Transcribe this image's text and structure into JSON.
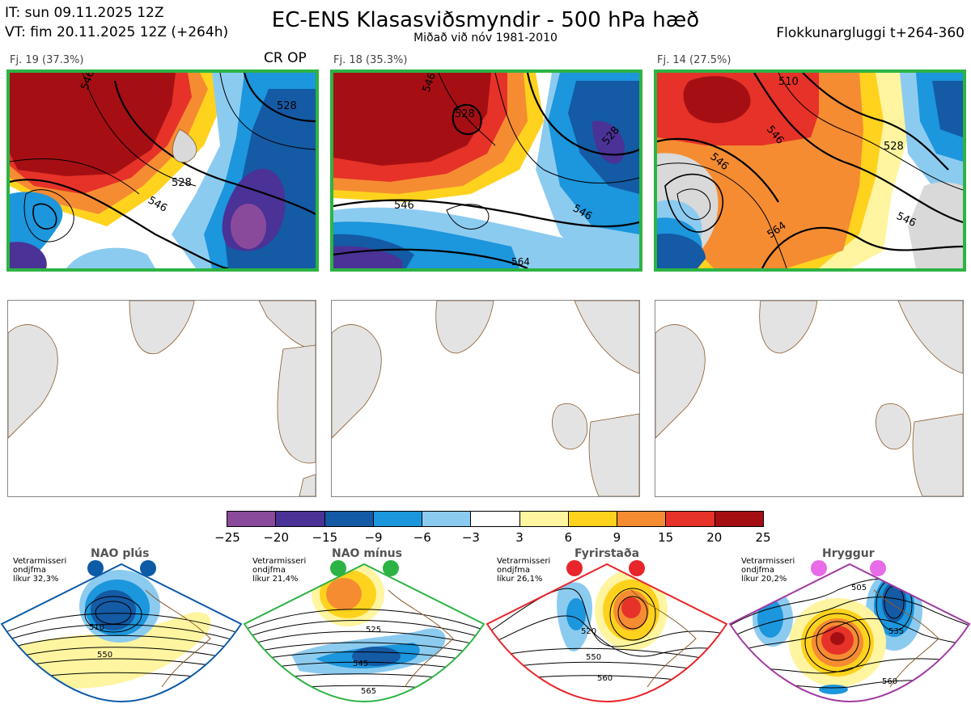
{
  "header": {
    "it": "IT: sun 09.11.2025 12Z",
    "vt": "VT: fim 20.11.2025 12Z  (+264h)",
    "title": "EC-ENS Klasasviðsmyndir - 500 hPa hæð",
    "subtitle": "Miðað við nóv 1981-2010",
    "window": "Flokkunargluggi t+264-360"
  },
  "clusters": [
    {
      "label": "Fj. 19 (37.3%)",
      "contours": [
        "546",
        "528",
        "528",
        "546"
      ],
      "tag": "CR OP"
    },
    {
      "label": "Fj. 18 (35.3%)",
      "contours": [
        "546",
        "528",
        "528",
        "546",
        "546",
        "564"
      ]
    },
    {
      "label": "Fj. 14 (27.5%)",
      "contours": [
        "510",
        "546",
        "528",
        "546",
        "546",
        "564"
      ]
    }
  ],
  "colorbar": {
    "colors": [
      "#8a4a9c",
      "#4a3296",
      "#145aa5",
      "#1c96dc",
      "#8ccbf0",
      "#ffffff",
      "#fff5a0",
      "#ffd21e",
      "#f58c32",
      "#e63228",
      "#a50f14"
    ],
    "ticks": [
      "−25",
      "−20",
      "−15",
      "−9",
      "−6",
      "−3",
      "3",
      "6",
      "9",
      "15",
      "20",
      "25"
    ]
  },
  "regimes": [
    {
      "name": "NAO plús",
      "note": [
        "Vetrarmisseri",
        "ondjfma",
        "líkur 32,3%"
      ],
      "color": "#0d5aa7",
      "contours": [
        "510",
        "550"
      ]
    },
    {
      "name": "NAO mínus",
      "note": [
        "Vetrarmisseri",
        "ondjfma",
        "líkur 21,4%"
      ],
      "color": "#2db344",
      "contours": [
        "525",
        "545",
        "565"
      ]
    },
    {
      "name": "Fyrirstaða",
      "note": [
        "Vetrarmisseri",
        "ondjfma",
        "líkur 26,1%"
      ],
      "color": "#e8252b",
      "contours": [
        "520",
        "550",
        "560"
      ]
    },
    {
      "name": "Hryggur",
      "note": [
        "Vetrarmisseri",
        "ondjfma",
        "líkur 20,2%"
      ],
      "color": "#e86be8",
      "contours": [
        "505",
        "535",
        "560"
      ]
    }
  ]
}
